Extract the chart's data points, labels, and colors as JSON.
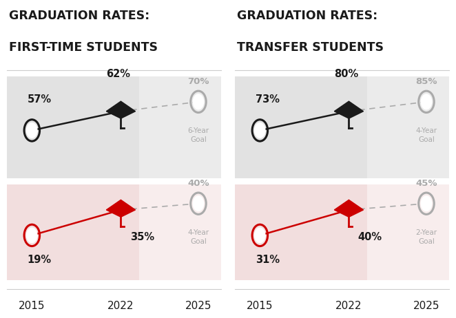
{
  "left_title_line1": "GRADUATION RATES:",
  "left_title_line2": "FIRST-TIME STUDENTS",
  "right_title_line1": "GRADUATION RATES:",
  "right_title_line2": "TRANSFER STUDENTS",
  "title_color": "#1a1a1a",
  "title_fontsize": 13,
  "bg_color": "#ffffff",
  "left": {
    "black_label_2015": "57%",
    "black_label_2022": "62%",
    "black_goal_label": "70%",
    "black_goal_text": "6-Year\nGoal",
    "red_label_2015": "19%",
    "red_label_2022": "35%",
    "red_goal_label": "40%",
    "red_goal_text": "4-Year\nGoal"
  },
  "right": {
    "black_label_2015": "73%",
    "black_label_2022": "80%",
    "black_goal_label": "85%",
    "black_goal_text": "4-Year\nGoal",
    "red_label_2015": "31%",
    "red_label_2022": "40%",
    "red_goal_label": "45%",
    "red_goal_text": "2-Year\nGoal"
  },
  "black_color": "#1a1a1a",
  "red_color": "#cc0000",
  "gray_color": "#aaaaaa",
  "dashed_color": "#aaaaaa",
  "gray_bg1": "#e2e2e2",
  "gray_bg2": "#ebebeb",
  "red_bg1": "#f2dede",
  "red_bg2": "#f8eded"
}
